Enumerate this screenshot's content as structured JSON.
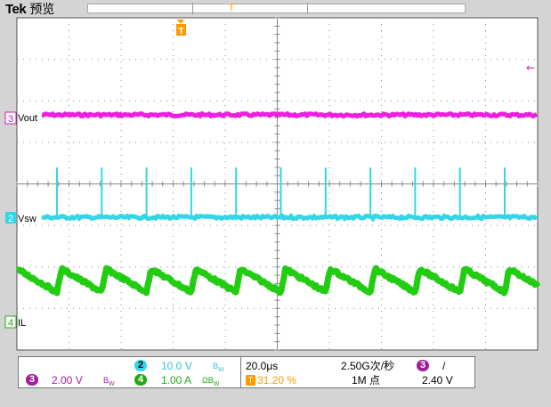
{
  "header": {
    "brand": "Tek",
    "mode": "预览",
    "trigger_position_marker": "T"
  },
  "colors": {
    "ch2": "#33d6e6",
    "ch3": "#ee1ee0",
    "ch4": "#22cc11",
    "trigger": "#ff9900",
    "screen_bg": "#ffffff",
    "grid": "#888888"
  },
  "channels": {
    "ch3": {
      "number": "3",
      "label": "Vout",
      "scale": "2.00 V",
      "coupling_icon": "bandwidth-limit-icon"
    },
    "ch2": {
      "number": "2",
      "label": "Vsw",
      "scale": "10.0 V",
      "coupling_icon": "bandwidth-limit-icon"
    },
    "ch4": {
      "number": "4",
      "label": "IL",
      "scale": "1.00 A",
      "coupling_icon": "ohm-bandwidth-icon"
    }
  },
  "horizontal": {
    "timebase": "20.0μs",
    "sample_rate": "2.50G次/秒",
    "record_length": "1M 点",
    "trigger_offset": "31.20 %"
  },
  "trigger": {
    "source": "3",
    "slope": "/",
    "level": "2.40 V"
  },
  "scope_markers": {
    "trigger_T": "T",
    "trigger_level_arrow": "←"
  }
}
